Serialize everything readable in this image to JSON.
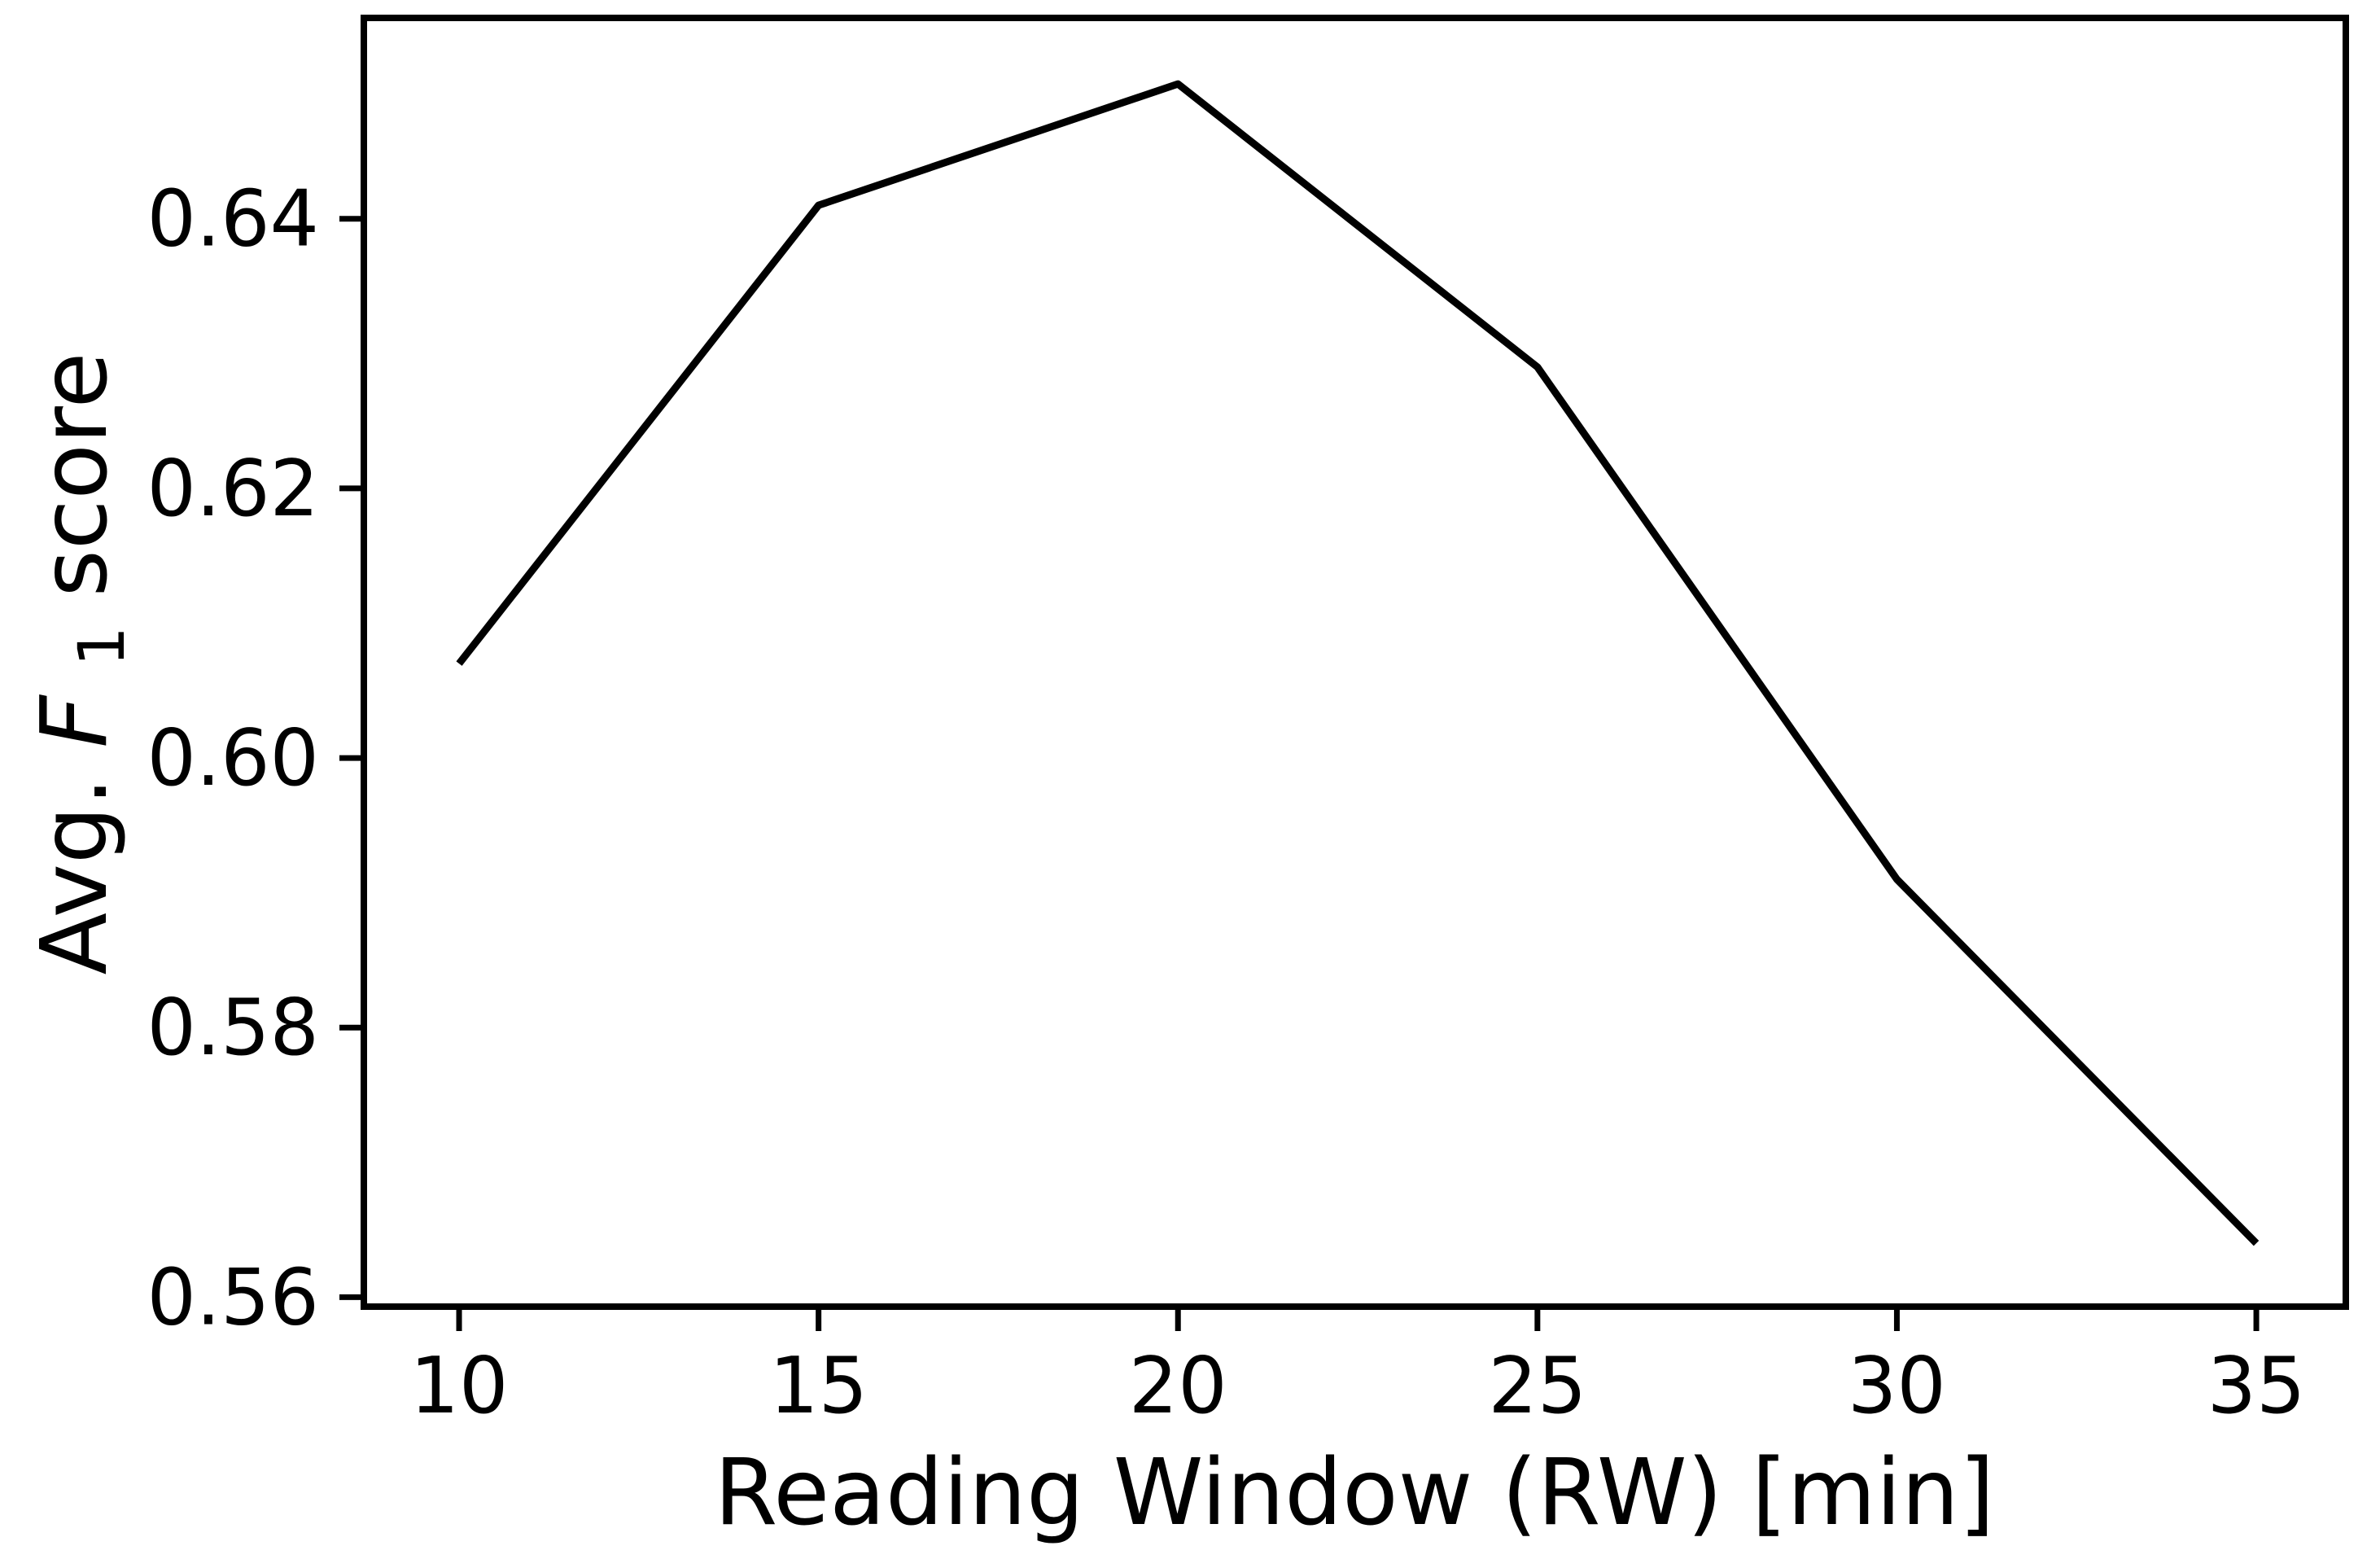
{
  "chart_data": {
    "type": "line",
    "title": "",
    "xlabel": "Reading Window (RW) [min]",
    "ylabel": "Avg. F1 score",
    "ylabel_parts": {
      "prefix": "Avg. ",
      "f_italic": "F",
      "f_subscript": "1",
      "suffix": " score"
    },
    "x": [
      10,
      15,
      20,
      25,
      30,
      35
    ],
    "series": [
      {
        "name": "Avg. F1 score",
        "values": [
          0.607,
          0.641,
          0.65,
          0.629,
          0.591,
          0.564
        ]
      }
    ],
    "xticks": [
      10,
      15,
      20,
      25,
      30,
      35
    ],
    "xtick_labels": [
      "10",
      "15",
      "20",
      "25",
      "30",
      "35"
    ],
    "yticks": [
      0.56,
      0.58,
      0.6,
      0.62,
      0.64
    ],
    "ytick_labels": [
      "0.56",
      "0.58",
      "0.60",
      "0.62",
      "0.64"
    ],
    "xlim": [
      8.675,
      36.245
    ],
    "ylim": [
      0.5593,
      0.6549
    ],
    "grid": false,
    "legend": "none",
    "line_color": "#000000",
    "line_width": 9,
    "axis_color": "#000000"
  }
}
